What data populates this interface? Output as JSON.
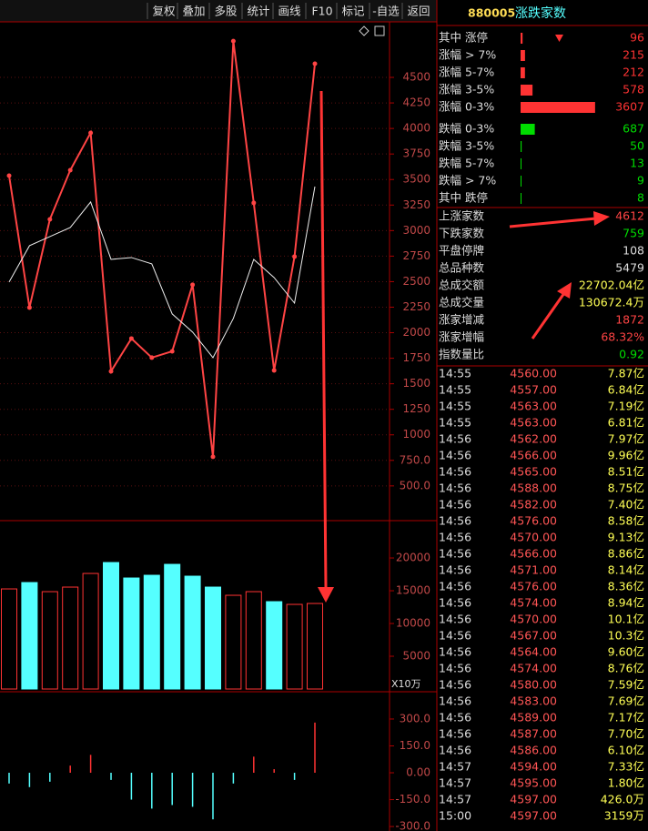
{
  "toolbar": [
    "复权",
    "叠加",
    "多股",
    "统计",
    "画线",
    "F10",
    "标记",
    "-自选",
    "返回"
  ],
  "header": {
    "code": "880005",
    "name": "涨跌家数"
  },
  "breadth": [
    {
      "label": "其中 涨停",
      "value": 96,
      "color": "#ff3333"
    },
    {
      "label": "涨幅 > 7%",
      "value": 215,
      "color": "#ff3333"
    },
    {
      "label": "涨幅 5-7%",
      "value": 212,
      "color": "#ff3333"
    },
    {
      "label": "涨幅 3-5%",
      "value": 578,
      "color": "#ff3333"
    },
    {
      "label": "涨幅 0-3%",
      "value": 3607,
      "color": "#ff3333"
    },
    {
      "label": "跌幅 0-3%",
      "value": 687,
      "color": "#00dd00"
    },
    {
      "label": "跌幅 3-5%",
      "value": 50,
      "color": "#00dd00"
    },
    {
      "label": "跌幅 5-7%",
      "value": 13,
      "color": "#00dd00"
    },
    {
      "label": "跌幅 > 7%",
      "value": 9,
      "color": "#00dd00"
    },
    {
      "label": "其中 跌停",
      "value": 8,
      "color": "#00dd00"
    }
  ],
  "stats": [
    {
      "label": "上涨家数",
      "value": "4612",
      "color": "#ff4444"
    },
    {
      "label": "下跌家数",
      "value": "759",
      "color": "#00dd00"
    },
    {
      "label": "平盘停牌",
      "value": "108",
      "color": "#dddddd"
    },
    {
      "label": "总品种数",
      "value": "5479",
      "color": "#dddddd"
    },
    {
      "label": "总成交额",
      "value": "22702.04亿",
      "color": "#ffff55"
    },
    {
      "label": "总成交量",
      "value": "130672.4万",
      "color": "#ffff55"
    },
    {
      "label": "涨家增减",
      "value": "1872",
      "color": "#ff4444"
    },
    {
      "label": "涨家增幅",
      "value": "68.32%",
      "color": "#ff4444"
    },
    {
      "label": "指数量比",
      "value": "0.92",
      "color": "#00dd00"
    }
  ],
  "trades": [
    [
      "14:55",
      "4560.00",
      "7.87亿"
    ],
    [
      "14:55",
      "4557.00",
      "6.84亿"
    ],
    [
      "14:55",
      "4563.00",
      "7.19亿"
    ],
    [
      "14:55",
      "4563.00",
      "6.81亿"
    ],
    [
      "14:56",
      "4562.00",
      "7.97亿"
    ],
    [
      "14:56",
      "4566.00",
      "9.96亿"
    ],
    [
      "14:56",
      "4565.00",
      "8.51亿"
    ],
    [
      "14:56",
      "4588.00",
      "8.75亿"
    ],
    [
      "14:56",
      "4582.00",
      "7.40亿"
    ],
    [
      "14:56",
      "4576.00",
      "8.58亿"
    ],
    [
      "14:56",
      "4570.00",
      "9.13亿"
    ],
    [
      "14:56",
      "4566.00",
      "8.86亿"
    ],
    [
      "14:56",
      "4571.00",
      "8.14亿"
    ],
    [
      "14:56",
      "4576.00",
      "8.36亿"
    ],
    [
      "14:56",
      "4574.00",
      "8.94亿"
    ],
    [
      "14:56",
      "4570.00",
      "10.1亿"
    ],
    [
      "14:56",
      "4567.00",
      "10.3亿"
    ],
    [
      "14:56",
      "4564.00",
      "9.60亿"
    ],
    [
      "14:56",
      "4574.00",
      "8.76亿"
    ],
    [
      "14:56",
      "4580.00",
      "7.59亿"
    ],
    [
      "14:56",
      "4583.00",
      "7.69亿"
    ],
    [
      "14:56",
      "4589.00",
      "7.17亿"
    ],
    [
      "14:56",
      "4587.00",
      "7.70亿"
    ],
    [
      "14:56",
      "4586.00",
      "6.10亿"
    ],
    [
      "14:57",
      "4594.00",
      "7.33亿"
    ],
    [
      "14:57",
      "4595.00",
      "1.80亿"
    ],
    [
      "14:57",
      "4597.00",
      "426.0万"
    ],
    [
      "15:00",
      "4597.00",
      "3159万"
    ]
  ],
  "chart_data": [
    {
      "type": "line",
      "ylim": [
        160,
        5035
      ],
      "yticks": [
        4500,
        4250,
        4000,
        3750,
        3500,
        3250,
        3000,
        2750,
        2500,
        2250,
        2000,
        1750,
        1500,
        1250,
        1000,
        {
          "value": 750,
          "label": "750.0"
        },
        {
          "value": 500,
          "label": "500.0"
        }
      ],
      "grid": true,
      "series": [
        {
          "color": "#ff4444",
          "values": [
            3538,
            2246,
            3110,
            3591,
            3957,
            1622,
            1943,
            1756,
            1818,
            2469,
            785,
            4856,
            3271,
            1631,
            2745,
            4634
          ]
        },
        {
          "color": "#eeeeee",
          "values": [
            2496,
            2852,
            2941,
            3030,
            3280,
            2718,
            2736,
            2674,
            2184,
            2006,
            1756,
            2140,
            2718,
            2540,
            2290,
            3431
          ]
        }
      ]
    },
    {
      "type": "bar",
      "ylim": [
        0,
        23200
      ],
      "yticks": [
        20000,
        15000,
        10000,
        5000
      ],
      "unit": "X10万",
      "values": [
        15278,
        16250,
        14861,
        15556,
        17639,
        19306,
        16944,
        17361,
        19028,
        17222,
        15556,
        14306,
        14861,
        13333,
        12917,
        13056
      ],
      "colors": [
        "#ff3333",
        "#55ffff",
        "#ff3333",
        "#ff3333",
        "#ff3333",
        "#55ffff",
        "#55ffff",
        "#55ffff",
        "#55ffff",
        "#55ffff",
        "#55ffff",
        "#ff3333",
        "#ff3333",
        "#55ffff",
        "#ff3333",
        "#ff3333"
      ]
    },
    {
      "type": "stick",
      "ylim": [
        -325,
        442
      ],
      "yticks": [
        {
          "value": 300,
          "label": "300.0"
        },
        {
          "value": 150,
          "label": "150.0"
        },
        {
          "value": 0,
          "label": "0.00"
        },
        {
          "value": -150,
          "label": "-150.0"
        },
        {
          "value": -300,
          "label": "-300.0"
        }
      ],
      "values": [
        -60,
        -80,
        -50,
        40,
        100,
        -40,
        -150,
        -200,
        -180,
        -190,
        -260,
        -60,
        90,
        20,
        -40,
        280
      ]
    }
  ]
}
